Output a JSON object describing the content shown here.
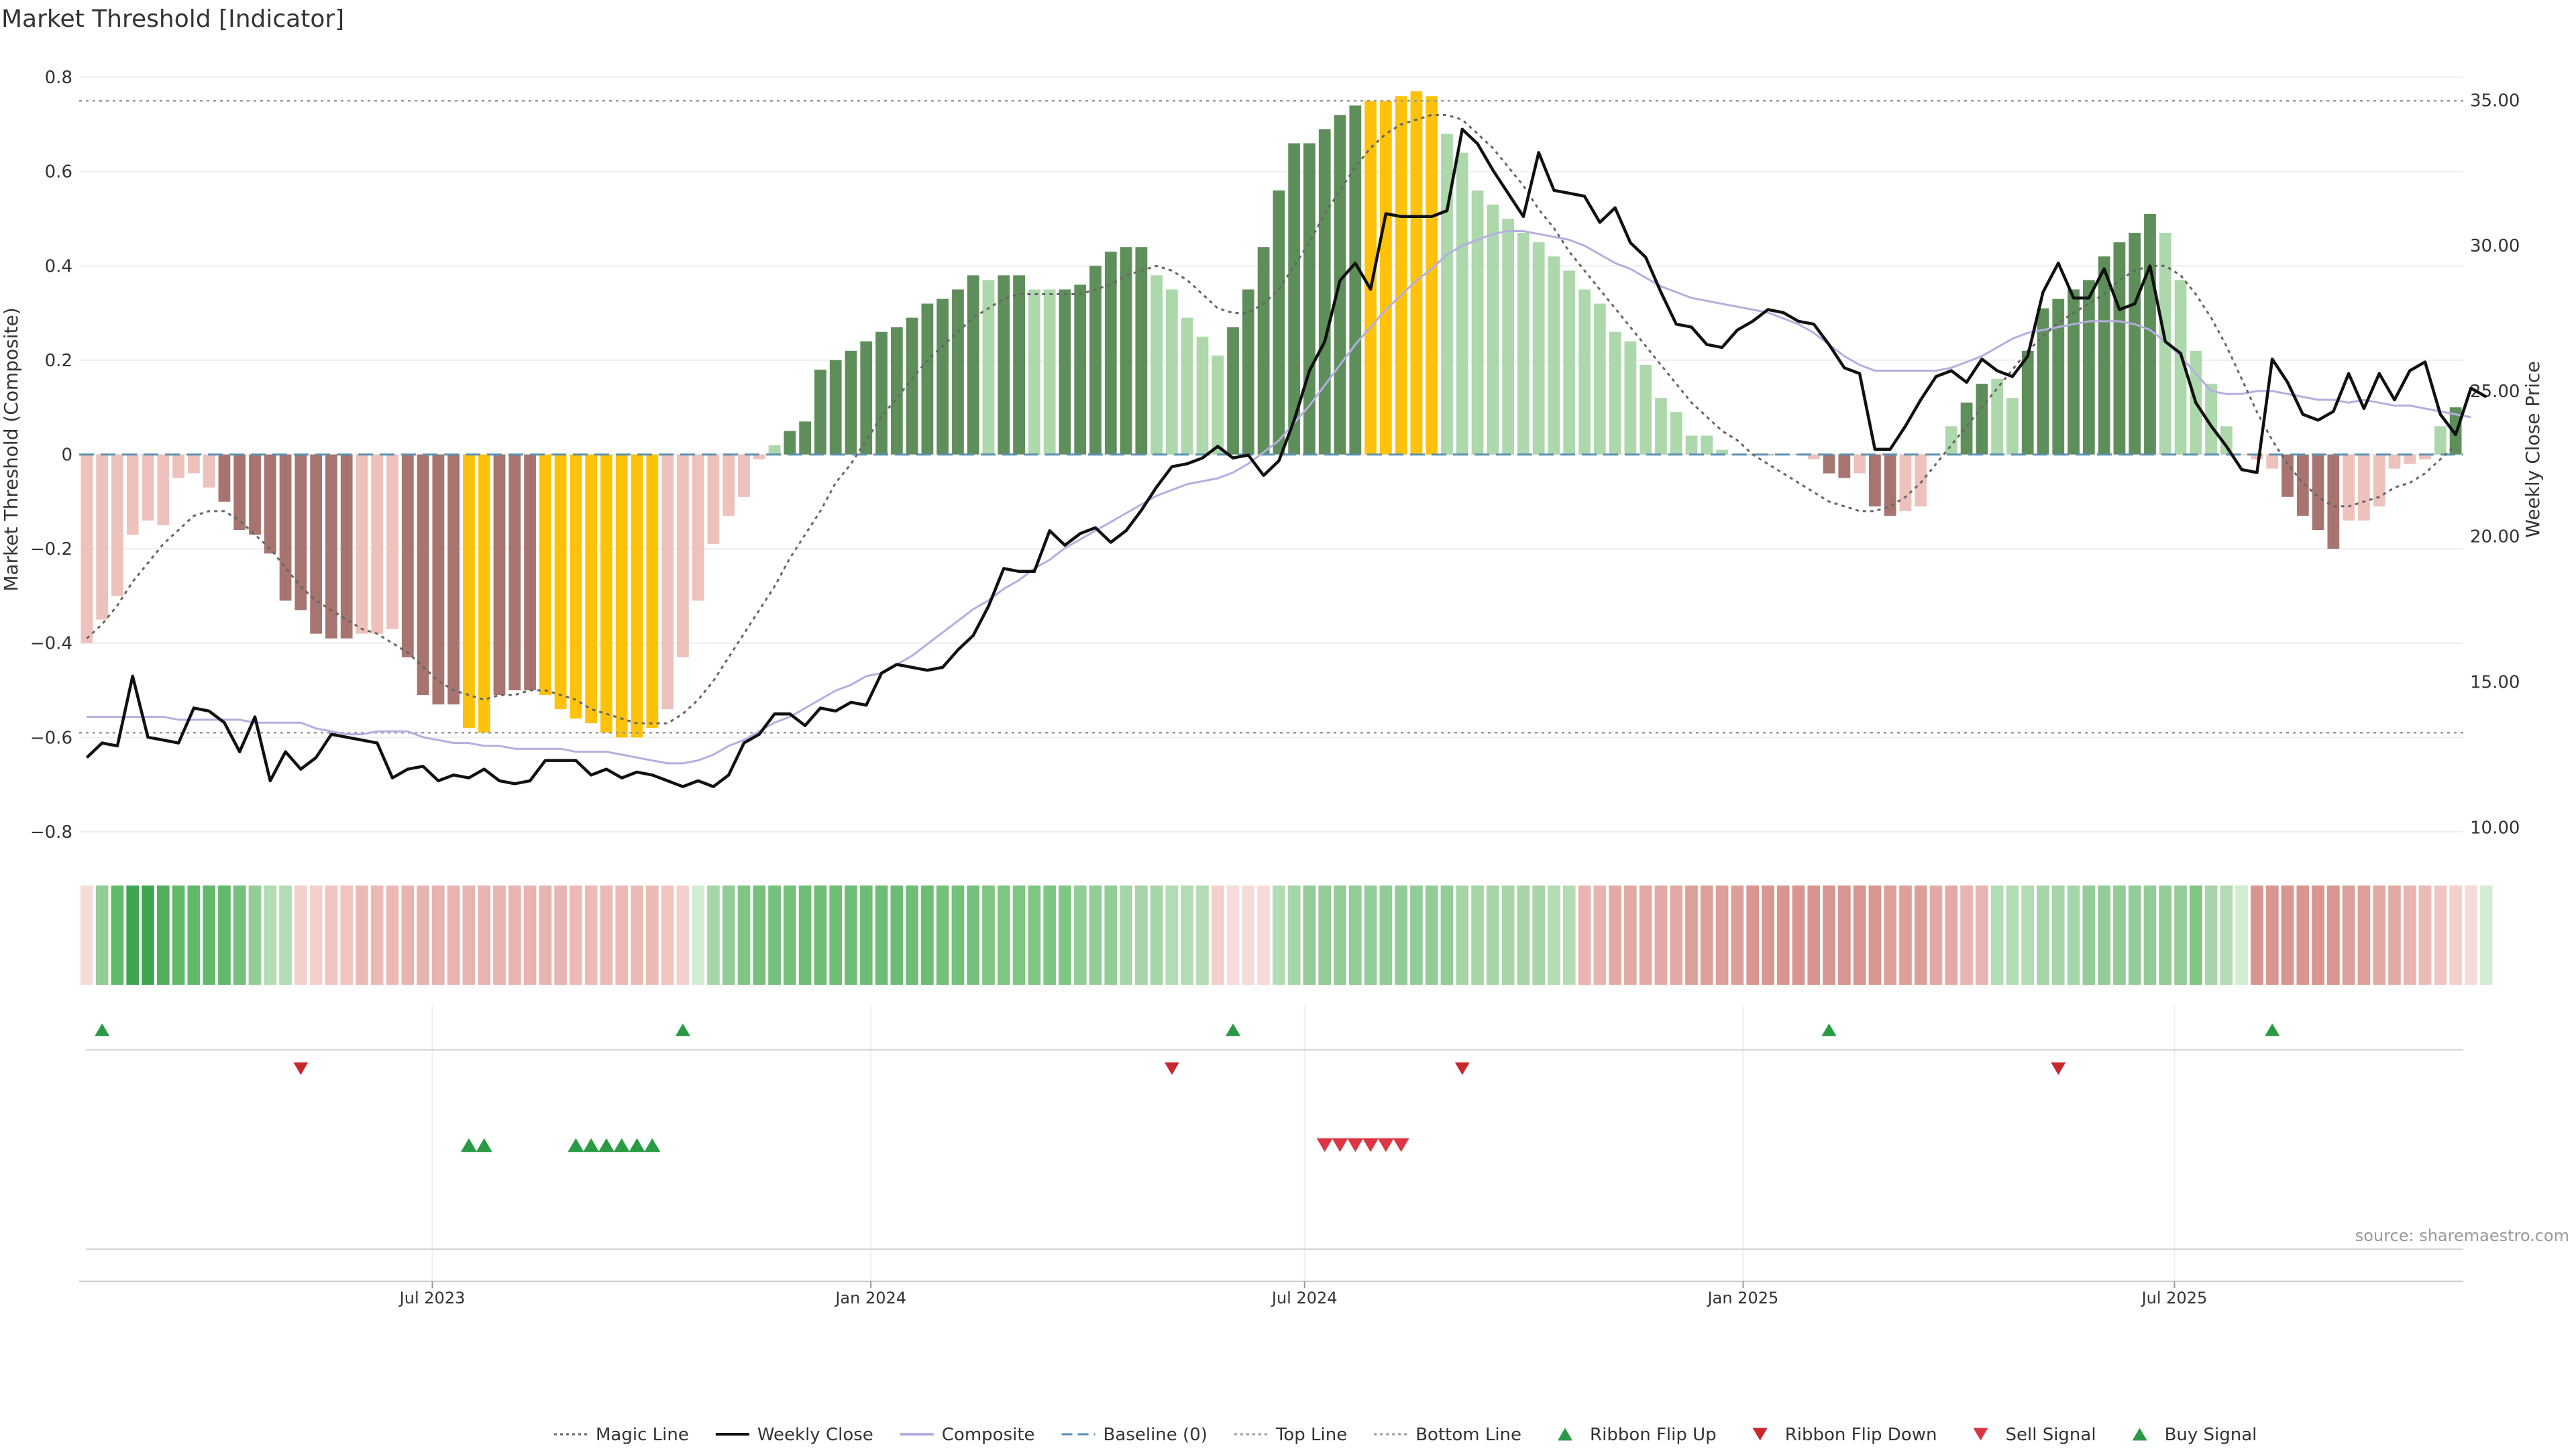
{
  "chart_data": {
    "type": "bar",
    "title": "Market Threshold [Indicator]",
    "ylabel": "Market Threshold (Composite)",
    "y2label": "Weekly Close Price",
    "ylim": [
      -0.84,
      0.85
    ],
    "y2lim": [
      9.2,
      36.6
    ],
    "yticks": [
      "0.8",
      "0.6",
      "0.4",
      "0.2",
      "0",
      "−0.2",
      "−0.4",
      "−0.6",
      "−0.8"
    ],
    "ytick_values": [
      0.8,
      0.6,
      0.4,
      0.2,
      0,
      -0.2,
      -0.4,
      -0.6,
      -0.8
    ],
    "y2ticks": [
      "35.00",
      "30.00",
      "25.00",
      "20.00",
      "15.00",
      "10.00"
    ],
    "y2tick_values": [
      35,
      30,
      25,
      20,
      15,
      10
    ],
    "x_start": "2023-02-06",
    "x_end": "2025-10-27",
    "frequency": "weekly",
    "xticks": [
      {
        "label": "Jul 2023",
        "date": "2023-07-01"
      },
      {
        "label": "Jan 2024",
        "date": "2024-01-01"
      },
      {
        "label": "Jul 2024",
        "date": "2024-07-01"
      },
      {
        "label": "Jan 2025",
        "date": "2025-01-01"
      },
      {
        "label": "Jul 2025",
        "date": "2025-07-01"
      }
    ],
    "top_line": 0.75,
    "bottom_line": -0.59,
    "baseline": 0,
    "composite": [
      -0.4,
      -0.35,
      -0.3,
      -0.17,
      -0.14,
      -0.15,
      -0.05,
      -0.04,
      -0.07,
      -0.1,
      -0.16,
      -0.17,
      -0.21,
      -0.31,
      -0.33,
      -0.38,
      -0.39,
      -0.39,
      -0.38,
      -0.38,
      -0.37,
      -0.43,
      -0.51,
      -0.53,
      -0.53,
      -0.58,
      -0.59,
      -0.51,
      -0.5,
      -0.5,
      -0.51,
      -0.54,
      -0.56,
      -0.57,
      -0.59,
      -0.6,
      -0.6,
      -0.58,
      -0.54,
      -0.43,
      -0.31,
      -0.19,
      -0.13,
      -0.09,
      -0.01,
      0.02,
      0.05,
      0.07,
      0.18,
      0.2,
      0.22,
      0.24,
      0.26,
      0.27,
      0.29,
      0.32,
      0.33,
      0.35,
      0.38,
      0.37,
      0.38,
      0.38,
      0.35,
      0.35,
      0.35,
      0.36,
      0.4,
      0.43,
      0.44,
      0.44,
      0.38,
      0.35,
      0.29,
      0.25,
      0.21,
      0.27,
      0.35,
      0.44,
      0.56,
      0.66,
      0.66,
      0.69,
      0.72,
      0.74,
      0.75,
      0.75,
      0.76,
      0.77,
      0.76,
      0.68,
      0.64,
      0.56,
      0.53,
      0.5,
      0.47,
      0.45,
      0.42,
      0.39,
      0.35,
      0.32,
      0.26,
      0.24,
      0.19,
      0.12,
      0.09,
      0.04,
      0.04,
      0.01,
      0.0,
      0.0,
      0.0,
      0.0,
      0.0,
      -0.01,
      -0.04,
      -0.05,
      -0.04,
      -0.11,
      -0.13,
      -0.12,
      -0.11,
      0.0,
      0.06,
      0.11,
      0.15,
      0.16,
      0.12,
      0.22,
      0.31,
      0.33,
      0.35,
      0.37,
      0.42,
      0.45,
      0.47,
      0.51,
      0.47,
      0.37,
      0.22,
      0.15,
      0.06,
      0.0,
      -0.01,
      -0.03,
      -0.09,
      -0.13,
      -0.16,
      -0.2,
      -0.14,
      -0.14,
      -0.11,
      -0.03,
      -0.02,
      -0.01,
      0.06,
      0.1
    ],
    "bar_colors": [
      "#edc2bc",
      "#edc2bc",
      "#edc2bc",
      "#edc2bc",
      "#edc2bc",
      "#edc2bc",
      "#edc2bc",
      "#edc2bc",
      "#edc2bc",
      "#a87470",
      "#a87470",
      "#a87470",
      "#a87470",
      "#a87470",
      "#a87470",
      "#a87470",
      "#a87470",
      "#a87470",
      "#edc2bc",
      "#edc2bc",
      "#edc2bc",
      "#a87470",
      "#a87470",
      "#a87470",
      "#a87470",
      "#ffc20a",
      "#ffc20a",
      "#a87470",
      "#a87470",
      "#a87470",
      "#ffc20a",
      "#ffc20a",
      "#ffc20a",
      "#ffc20a",
      "#ffc20a",
      "#ffc20a",
      "#ffc20a",
      "#ffc20a",
      "#edc2bc",
      "#edc2bc",
      "#edc2bc",
      "#edc2bc",
      "#edc2bc",
      "#edc2bc",
      "#edc2bc",
      "#add8ab",
      "#5e8f5a",
      "#5e8f5a",
      "#5e8f5a",
      "#5e8f5a",
      "#5e8f5a",
      "#5e8f5a",
      "#5e8f5a",
      "#5e8f5a",
      "#5e8f5a",
      "#5e8f5a",
      "#5e8f5a",
      "#5e8f5a",
      "#5e8f5a",
      "#add8ab",
      "#5e8f5a",
      "#5e8f5a",
      "#add8ab",
      "#add8ab",
      "#5e8f5a",
      "#5e8f5a",
      "#5e8f5a",
      "#5e8f5a",
      "#5e8f5a",
      "#5e8f5a",
      "#add8ab",
      "#add8ab",
      "#add8ab",
      "#add8ab",
      "#add8ab",
      "#5e8f5a",
      "#5e8f5a",
      "#5e8f5a",
      "#5e8f5a",
      "#5e8f5a",
      "#5e8f5a",
      "#5e8f5a",
      "#5e8f5a",
      "#5e8f5a",
      "#ffc20a",
      "#ffc20a",
      "#ffc20a",
      "#ffc20a",
      "#ffc20a",
      "#add8ab",
      "#add8ab",
      "#add8ab",
      "#add8ab",
      "#add8ab",
      "#add8ab",
      "#add8ab",
      "#add8ab",
      "#add8ab",
      "#add8ab",
      "#add8ab",
      "#add8ab",
      "#add8ab",
      "#add8ab",
      "#add8ab",
      "#add8ab",
      "#add8ab",
      "#add8ab",
      "#add8ab",
      "#add8ab",
      "#add8ab",
      "#5e8f5a",
      "#5e8f5a",
      "#edc2bc",
      "#edc2bc",
      "#a87470",
      "#a87470",
      "#edc2bc",
      "#a87470",
      "#a87470",
      "#edc2bc",
      "#edc2bc",
      "#add8ab",
      "#add8ab",
      "#5e8f5a",
      "#5e8f5a",
      "#add8ab",
      "#add8ab",
      "#5e8f5a",
      "#5e8f5a",
      "#5e8f5a",
      "#5e8f5a",
      "#5e8f5a",
      "#5e8f5a",
      "#5e8f5a",
      "#5e8f5a",
      "#5e8f5a",
      "#add8ab",
      "#add8ab",
      "#add8ab",
      "#add8ab",
      "#add8ab",
      "#edc2bc",
      "#edc2bc",
      "#edc2bc",
      "#a87470",
      "#a87470",
      "#a87470",
      "#a87470",
      "#edc2bc",
      "#edc2bc",
      "#edc2bc",
      "#edc2bc",
      "#edc2bc",
      "#edc2bc",
      "#add8ab",
      "#5e8f5a"
    ],
    "magic_line": [
      -0.39,
      -0.36,
      -0.32,
      -0.27,
      -0.23,
      -0.19,
      -0.16,
      -0.13,
      -0.12,
      -0.12,
      -0.14,
      -0.17,
      -0.2,
      -0.24,
      -0.28,
      -0.31,
      -0.33,
      -0.35,
      -0.37,
      -0.38,
      -0.4,
      -0.42,
      -0.45,
      -0.48,
      -0.5,
      -0.51,
      -0.52,
      -0.51,
      -0.51,
      -0.5,
      -0.5,
      -0.51,
      -0.52,
      -0.54,
      -0.55,
      -0.56,
      -0.57,
      -0.57,
      -0.57,
      -0.55,
      -0.52,
      -0.48,
      -0.43,
      -0.38,
      -0.33,
      -0.28,
      -0.22,
      -0.17,
      -0.12,
      -0.06,
      -0.02,
      0.03,
      0.08,
      0.12,
      0.16,
      0.2,
      0.23,
      0.26,
      0.29,
      0.31,
      0.33,
      0.34,
      0.34,
      0.34,
      0.34,
      0.34,
      0.35,
      0.36,
      0.38,
      0.39,
      0.4,
      0.39,
      0.37,
      0.34,
      0.31,
      0.3,
      0.3,
      0.32,
      0.35,
      0.4,
      0.45,
      0.51,
      0.56,
      0.61,
      0.65,
      0.68,
      0.7,
      0.71,
      0.72,
      0.72,
      0.71,
      0.68,
      0.65,
      0.61,
      0.57,
      0.52,
      0.48,
      0.43,
      0.39,
      0.35,
      0.31,
      0.27,
      0.23,
      0.19,
      0.15,
      0.11,
      0.08,
      0.05,
      0.03,
      0.0,
      -0.02,
      -0.04,
      -0.06,
      -0.08,
      -0.1,
      -0.11,
      -0.12,
      -0.12,
      -0.11,
      -0.09,
      -0.06,
      -0.02,
      0.02,
      0.06,
      0.1,
      0.14,
      0.18,
      0.22,
      0.25,
      0.28,
      0.3,
      0.32,
      0.34,
      0.37,
      0.39,
      0.4,
      0.4,
      0.38,
      0.34,
      0.29,
      0.23,
      0.16,
      0.09,
      0.03,
      -0.02,
      -0.06,
      -0.09,
      -0.11,
      -0.11,
      -0.1,
      -0.09,
      -0.07,
      -0.06,
      -0.04,
      -0.01,
      0.02
    ],
    "weekly_close": [
      12.4,
      12.9,
      12.8,
      15.2,
      13.1,
      13.0,
      12.9,
      14.1,
      14.0,
      13.6,
      12.6,
      13.8,
      11.6,
      12.6,
      12.0,
      12.4,
      13.2,
      13.1,
      13.0,
      12.9,
      11.7,
      12.0,
      12.1,
      11.6,
      11.8,
      11.7,
      12.0,
      11.6,
      11.5,
      11.6,
      12.3,
      12.3,
      12.3,
      11.8,
      12.0,
      11.7,
      11.9,
      11.8,
      11.6,
      11.4,
      11.6,
      11.4,
      11.8,
      12.9,
      13.2,
      13.9,
      13.9,
      13.5,
      14.1,
      14.0,
      14.3,
      14.2,
      15.3,
      15.6,
      15.5,
      15.4,
      15.5,
      16.1,
      16.6,
      17.6,
      18.9,
      18.8,
      18.8,
      20.2,
      19.7,
      20.1,
      20.3,
      19.8,
      20.2,
      20.9,
      21.7,
      22.4,
      22.5,
      22.7,
      23.1,
      22.7,
      22.8,
      22.1,
      22.6,
      24.0,
      25.7,
      26.7,
      28.8,
      29.4,
      28.5,
      31.1,
      31.0,
      31.0,
      31.0,
      31.2,
      34.0,
      33.5,
      32.6,
      31.8,
      31.0,
      33.2,
      31.9,
      31.8,
      31.7,
      30.8,
      31.3,
      30.1,
      29.6,
      28.4,
      27.3,
      27.2,
      26.6,
      26.5,
      27.1,
      27.4,
      27.8,
      27.7,
      27.4,
      27.3,
      26.6,
      25.8,
      25.6,
      23.0,
      23.0,
      23.8,
      24.7,
      25.5,
      25.7,
      25.3,
      26.1,
      25.7,
      25.5,
      26.2,
      28.4,
      29.4,
      28.2,
      28.2,
      29.2,
      27.8,
      28.0,
      29.3,
      26.7,
      26.3,
      24.6,
      23.8,
      23.1,
      22.3,
      22.2,
      26.1,
      25.3,
      24.2,
      24.0,
      24.3,
      25.6,
      24.4,
      25.6,
      24.7,
      25.7,
      26.0,
      24.2,
      23.5,
      25.1,
      24.8
    ],
    "composite_avg": [
      13.8,
      13.8,
      13.8,
      13.8,
      13.8,
      13.8,
      13.7,
      13.7,
      13.7,
      13.7,
      13.7,
      13.6,
      13.6,
      13.6,
      13.6,
      13.4,
      13.3,
      13.2,
      13.2,
      13.3,
      13.3,
      13.3,
      13.1,
      13.0,
      12.9,
      12.9,
      12.8,
      12.8,
      12.7,
      12.7,
      12.7,
      12.7,
      12.6,
      12.6,
      12.6,
      12.5,
      12.4,
      12.3,
      12.2,
      12.2,
      12.3,
      12.5,
      12.8,
      13.0,
      13.3,
      13.6,
      13.8,
      14.1,
      14.4,
      14.7,
      14.9,
      15.2,
      15.3,
      15.6,
      15.9,
      16.3,
      16.7,
      17.1,
      17.5,
      17.8,
      18.2,
      18.5,
      18.9,
      19.2,
      19.6,
      19.9,
      20.2,
      20.5,
      20.8,
      21.1,
      21.4,
      21.6,
      21.8,
      21.9,
      22.0,
      22.2,
      22.5,
      22.9,
      23.3,
      23.9,
      24.5,
      25.2,
      25.9,
      26.6,
      27.2,
      27.8,
      28.3,
      28.8,
      29.2,
      29.7,
      30.0,
      30.2,
      30.4,
      30.5,
      30.5,
      30.4,
      30.3,
      30.2,
      30.0,
      29.7,
      29.4,
      29.2,
      28.9,
      28.6,
      28.4,
      28.2,
      28.1,
      28.0,
      27.9,
      27.8,
      27.7,
      27.5,
      27.3,
      27.0,
      26.6,
      26.2,
      25.9,
      25.7,
      25.7,
      25.7,
      25.7,
      25.7,
      25.8,
      26.0,
      26.2,
      26.5,
      26.8,
      27.0,
      27.1,
      27.2,
      27.3,
      27.4,
      27.4,
      27.4,
      27.3,
      27.1,
      26.7,
      26.2,
      25.6,
      25.0,
      24.9,
      24.9,
      25.0,
      25.0,
      24.9,
      24.8,
      24.7,
      24.7,
      24.6,
      24.7,
      24.6,
      24.5,
      24.5,
      24.4,
      24.3,
      24.2,
      24.1
    ],
    "ribbon_colors": [
      "#f5dcd8",
      "#92cc96",
      "#61b96a",
      "#3fa551",
      "#3fa551",
      "#52ad5e",
      "#61b96a",
      "#61b96a",
      "#61b96a",
      "#61b96a",
      "#75c07a",
      "#92cc96",
      "#b2dcb3",
      "#b2dcb3",
      "#f3d0cc",
      "#f3d0cc",
      "#f0c5c1",
      "#f0c5c1",
      "#ecbab5",
      "#ecbab5",
      "#ecbab5",
      "#e8b4b0",
      "#e8b4b0",
      "#e8b4b0",
      "#e8b4b0",
      "#e8b4b0",
      "#e8b4b0",
      "#e8b4b0",
      "#e8b4b0",
      "#e8b4b0",
      "#e8b4b0",
      "#e8b4b0",
      "#ecbab5",
      "#ecbab5",
      "#ecbab5",
      "#ecbab5",
      "#ecbab5",
      "#ecbab5",
      "#f0c5c1",
      "#f3d0cc",
      "#d2ecd2",
      "#a6d6a7",
      "#92cc96",
      "#7fc583",
      "#75c07a",
      "#75c07a",
      "#75c07a",
      "#6ebd74",
      "#6ebd74",
      "#6ebd74",
      "#6ebd74",
      "#6ebd74",
      "#6ebd74",
      "#6ebd74",
      "#6ebd74",
      "#6ebd74",
      "#75c07a",
      "#75c07a",
      "#75c07a",
      "#7fc583",
      "#7fc583",
      "#7fc583",
      "#7fc583",
      "#7fc583",
      "#7fc583",
      "#92cc96",
      "#92cc96",
      "#92cc96",
      "#a6d6a7",
      "#a6d6a7",
      "#a6d6a7",
      "#b2dcb3",
      "#b2dcb3",
      "#b2dcb3",
      "#f3d0cc",
      "#f5dcd8",
      "#f5dcd8",
      "#f5dcd8",
      "#b2dcb3",
      "#a6d6a7",
      "#92cc96",
      "#92cc96",
      "#92cc96",
      "#92cc96",
      "#92cc96",
      "#92cc96",
      "#92cc96",
      "#92cc96",
      "#92cc96",
      "#92cc96",
      "#a6d6a7",
      "#a6d6a7",
      "#a6d6a7",
      "#a6d6a7",
      "#a6d6a7",
      "#a6d6a7",
      "#b2dcb3",
      "#b2dcb3",
      "#e8b4b0",
      "#e8b4b0",
      "#e3aaa5",
      "#e3aaa5",
      "#e3aaa5",
      "#e3aaa5",
      "#e3aaa5",
      "#dd9f99",
      "#dd9f99",
      "#dd9f99",
      "#dd9f99",
      "#d9958f",
      "#d9958f",
      "#d9958f",
      "#d9958f",
      "#d9958f",
      "#d9958f",
      "#d9958f",
      "#d9958f",
      "#d9958f",
      "#dd9f99",
      "#dd9f99",
      "#dd9f99",
      "#e3aaa5",
      "#e3aaa5",
      "#e8b4b0",
      "#e8b4b0",
      "#b2dcb3",
      "#b2dcb3",
      "#b2dcb3",
      "#a6d6a7",
      "#a6d6a7",
      "#a6d6a7",
      "#92cc96",
      "#92cc96",
      "#92cc96",
      "#92cc96",
      "#92cc96",
      "#92cc96",
      "#92cc96",
      "#7fc583",
      "#a6d6a7",
      "#b2dcb3",
      "#d2ecd2",
      "#d9958f",
      "#d9958f",
      "#d9958f",
      "#d9958f",
      "#d9958f",
      "#d9958f",
      "#dd9f99",
      "#dd9f99",
      "#e3aaa5",
      "#e3aaa5",
      "#e8b4b0",
      "#ecbab5",
      "#f0c5c1",
      "#f3d0cc",
      "#f5dcd8",
      "#d2ecd2"
    ],
    "ribbon_flip_up_weeks": [
      1,
      39,
      75,
      114,
      143
    ],
    "ribbon_flip_down_weeks": [
      14,
      71,
      90,
      129
    ],
    "buy_signal_weeks": [
      25,
      26,
      32,
      33,
      34,
      35,
      36,
      37
    ],
    "sell_signal_weeks": [
      81,
      82,
      83,
      84,
      85,
      86
    ],
    "source": "source: sharemaestro.com",
    "legend": [
      {
        "label": "Magic Line",
        "style": "dotted-line",
        "color": "#666666"
      },
      {
        "label": "Weekly Close",
        "style": "solid-line",
        "color": "#111111"
      },
      {
        "label": "Composite",
        "style": "solid-line",
        "color": "#b4aee0"
      },
      {
        "label": "Baseline (0)",
        "style": "dashed-line",
        "color": "#5b8fb0"
      },
      {
        "label": "Top Line",
        "style": "dotted-line",
        "color": "#999999"
      },
      {
        "label": "Bottom Line",
        "style": "dotted-line",
        "color": "#999999"
      },
      {
        "label": "Ribbon Flip Up",
        "style": "triangle-up",
        "color": "#2a9a45"
      },
      {
        "label": "Ribbon Flip Down",
        "style": "triangle-down",
        "color": "#c8282d"
      },
      {
        "label": "Sell Signal",
        "style": "triangle-down",
        "color": "#dc3545"
      },
      {
        "label": "Buy Signal",
        "style": "triangle-up",
        "color": "#2a9a45"
      }
    ],
    "legend_placement": "bottom-center"
  }
}
